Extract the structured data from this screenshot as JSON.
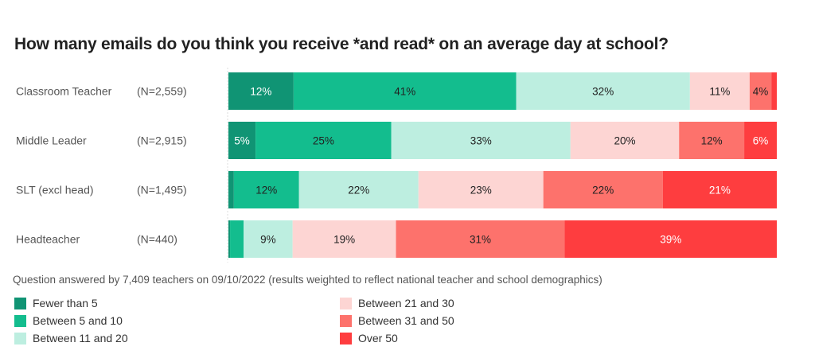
{
  "chart_data": {
    "type": "bar",
    "orientation": "horizontal",
    "stacked": true,
    "title": "How many emails do you think you receive *and read* on an average day at school?",
    "note": "Question answered by 7,409 teachers on 09/10/2022 (results weighted to reflect national teacher and school demographics)",
    "categories": [
      "Classroom Teacher",
      "Middle Leader",
      "SLT (excl head)",
      "Headteacher"
    ],
    "n_labels": [
      "(N=2,559)",
      "(N=2,915)",
      "(N=1,495)",
      "(N=440)"
    ],
    "xlim": [
      0,
      100
    ],
    "legend_position": "bottom",
    "series": [
      {
        "name": "Fewer than 5",
        "color": "#109474",
        "text_color": "#ffffff",
        "values": [
          12,
          5,
          1,
          0.3
        ],
        "labels": [
          "12%",
          "5%",
          "",
          ""
        ]
      },
      {
        "name": "Between 5 and 10",
        "color": "#13bd8e",
        "text_color": "#222222",
        "values": [
          41,
          25,
          12,
          2.5
        ],
        "labels": [
          "41%",
          "25%",
          "12%",
          ""
        ]
      },
      {
        "name": "Between 11 and 20",
        "color": "#bdeee0",
        "text_color": "#222222",
        "values": [
          32,
          33,
          22,
          9
        ],
        "labels": [
          "32%",
          "33%",
          "22%",
          "9%"
        ]
      },
      {
        "name": "Between 21 and 30",
        "color": "#fdd5d3",
        "text_color": "#222222",
        "values": [
          11,
          20,
          23,
          19
        ],
        "labels": [
          "11%",
          "20%",
          "23%",
          "19%"
        ]
      },
      {
        "name": "Between 31 and 50",
        "color": "#fd726c",
        "text_color": "#222222",
        "values": [
          4,
          12,
          22,
          31
        ],
        "labels": [
          "4%",
          "12%",
          "22%",
          "31%"
        ]
      },
      {
        "name": "Over 50",
        "color": "#fe3d3f",
        "text_color": "#ffffff",
        "values": [
          1,
          6,
          21,
          39
        ],
        "labels": [
          "",
          "6%",
          "21%",
          "39%"
        ]
      }
    ]
  }
}
